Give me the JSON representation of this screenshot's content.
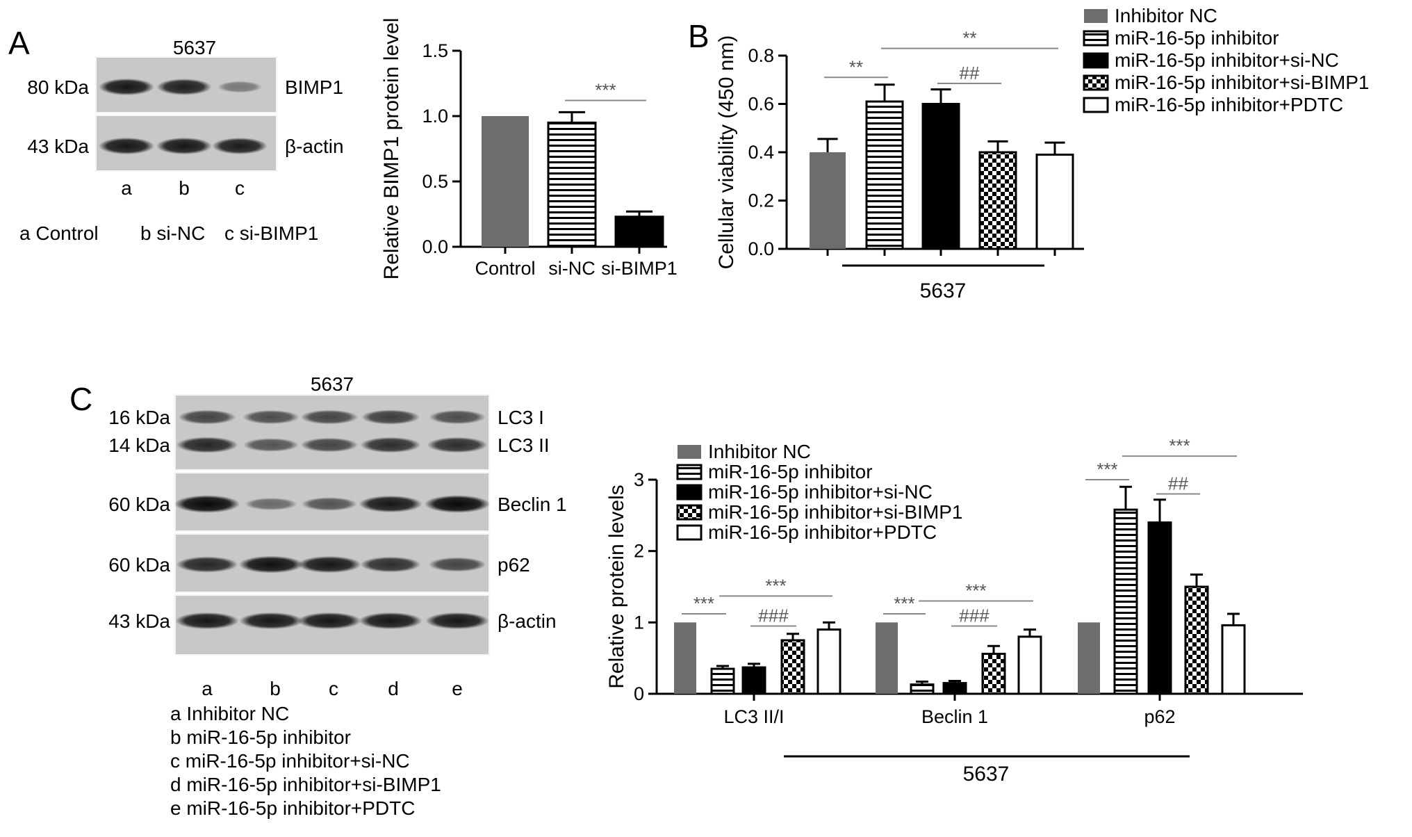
{
  "panels": {
    "A": {
      "letter": "A",
      "blot": {
        "cell_line": "5637",
        "rows": [
          {
            "kda": "80 kDa",
            "protein": "BIMP1",
            "intensities": [
              0.85,
              0.8,
              0.2
            ]
          },
          {
            "kda": "43 kDa",
            "protein": "β-actin",
            "intensities": [
              0.85,
              0.85,
              0.82
            ]
          }
        ],
        "lanes": [
          "a",
          "b",
          "c"
        ],
        "key": [
          "a Control",
          "b si-NC",
          "c si-BIMP1"
        ]
      }
    },
    "B": {
      "letter": "B",
      "group_label": "5637"
    },
    "C": {
      "letter": "C",
      "blot": {
        "cell_line": "5637",
        "rows": [
          {
            "kda": "16 kDa",
            "protein": "LC3 I",
            "intensities": [
              0.55,
              0.5,
              0.55,
              0.6,
              0.5
            ]
          },
          {
            "kda": "14 kDa",
            "protein": "LC3 II",
            "intensities": [
              0.75,
              0.45,
              0.55,
              0.7,
              0.7
            ]
          },
          {
            "kda": "60 kDa",
            "protein": "Beclin 1",
            "intensities": [
              0.95,
              0.3,
              0.45,
              0.85,
              0.95
            ]
          },
          {
            "kda": "60 kDa",
            "protein": "p62",
            "intensities": [
              0.75,
              0.9,
              0.85,
              0.7,
              0.55
            ]
          },
          {
            "kda": "43 kDa",
            "protein": "β-actin",
            "intensities": [
              0.85,
              0.85,
              0.85,
              0.85,
              0.85
            ]
          }
        ],
        "lanes": [
          "a",
          "b",
          "c",
          "d",
          "e"
        ],
        "key": [
          "a Inhibitor NC",
          "b miR-16-5p inhibitor",
          "c miR-16-5p inhibitor+si-NC",
          "d miR-16-5p inhibitor+si-BIMP1",
          "e miR-16-5p inhibitor+PDTC"
        ]
      },
      "group_label": "5637"
    }
  },
  "colors": {
    "gray": "#6d6d6d",
    "black": "#000000",
    "white": "#ffffff",
    "axis": "#000000",
    "sig_line": "#888888"
  },
  "chart_data": [
    {
      "id": "A-right",
      "type": "bar",
      "categories": [
        "Control",
        "si-NC",
        "si-BIMP1"
      ],
      "values": [
        1.0,
        0.95,
        0.23
      ],
      "errors": [
        0,
        0.08,
        0.04
      ],
      "fills": [
        "gray",
        "hstripe",
        "black"
      ],
      "ylabel": "Relative BIMP1 protein level",
      "ylim": [
        0,
        1.5
      ],
      "yticks": [
        "0.0",
        "0.5",
        "1.0",
        "1.5"
      ],
      "annotations": [
        {
          "from": 1,
          "to": 2,
          "text": "***",
          "y": 1.12
        }
      ]
    },
    {
      "id": "B",
      "type": "bar",
      "categories": [
        "Inhibitor NC",
        "miR-16-5p inhibitor",
        "miR-16-5p inhibitor+si-NC",
        "miR-16-5p inhibitor+si-BIMP1",
        "miR-16-5p inhibitor+PDTC"
      ],
      "values": [
        0.4,
        0.61,
        0.6,
        0.4,
        0.39
      ],
      "errors": [
        0.055,
        0.07,
        0.06,
        0.045,
        0.05
      ],
      "fills": [
        "gray",
        "hstripe",
        "black",
        "checker",
        "white"
      ],
      "ylabel": "Cellular viability (450 nm)",
      "ylim": [
        0,
        0.8
      ],
      "yticks": [
        "0.0",
        "0.2",
        "0.4",
        "0.6",
        "0.8"
      ],
      "legend": {
        "placement": "top-right",
        "entries": [
          "Inhibitor NC",
          "miR-16-5p inhibitor",
          "miR-16-5p inhibitor+si-NC",
          "miR-16-5p inhibitor+si-BIMP1",
          "miR-16-5p inhibitor+PDTC"
        ]
      },
      "annotations": [
        {
          "from": 0,
          "to": 1,
          "text": "**",
          "y": 0.71
        },
        {
          "from": 1,
          "to": 4,
          "text": "**",
          "y": 0.83
        },
        {
          "from": 2,
          "to": 3,
          "text": "##",
          "y": 0.685
        }
      ]
    },
    {
      "id": "C-right",
      "type": "bar",
      "categories": [
        "LC3 II/I",
        "Beclin 1",
        "p62"
      ],
      "series": [
        {
          "name": "Inhibitor NC",
          "values": [
            1.0,
            1.0,
            1.0
          ],
          "errors": [
            0,
            0,
            0
          ],
          "fill": "gray"
        },
        {
          "name": "miR-16-5p inhibitor",
          "values": [
            0.35,
            0.13,
            2.58
          ],
          "errors": [
            0.04,
            0.04,
            0.32
          ],
          "fill": "hstripe"
        },
        {
          "name": "miR-16-5p inhibitor+si-NC",
          "values": [
            0.37,
            0.15,
            2.4
          ],
          "errors": [
            0.05,
            0.03,
            0.32
          ],
          "fill": "black"
        },
        {
          "name": "miR-16-5p inhibitor+si-BIMP1",
          "values": [
            0.75,
            0.56,
            1.5
          ],
          "errors": [
            0.09,
            0.11,
            0.17
          ],
          "fill": "checker"
        },
        {
          "name": "miR-16-5p inhibitor+PDTC",
          "values": [
            0.9,
            0.8,
            0.96
          ],
          "errors": [
            0.1,
            0.1,
            0.16
          ],
          "fill": "white"
        }
      ],
      "ylabel": "Relative protein levels",
      "ylim": [
        0,
        3
      ],
      "yticks": [
        "0",
        "1",
        "2",
        "3"
      ],
      "legend": {
        "placement": "top-left",
        "entries": [
          "Inhibitor NC",
          "miR-16-5p inhibitor",
          "miR-16-5p inhibitor+si-NC",
          "miR-16-5p inhibitor+si-BIMP1",
          "miR-16-5p inhibitor+PDTC"
        ]
      },
      "annotations": [
        {
          "group": 0,
          "from": 0,
          "to": 1,
          "text": "***",
          "y": 1.12
        },
        {
          "group": 0,
          "from": 1,
          "to": 4,
          "text": "***",
          "y": 1.37
        },
        {
          "group": 0,
          "from": 2,
          "to": 3,
          "text": "###",
          "y": 0.95
        },
        {
          "group": 1,
          "from": 0,
          "to": 1,
          "text": "***",
          "y": 1.12
        },
        {
          "group": 1,
          "from": 1,
          "to": 4,
          "text": "***",
          "y": 1.3
        },
        {
          "group": 1,
          "from": 2,
          "to": 3,
          "text": "###",
          "y": 0.95
        },
        {
          "group": 2,
          "from": 0,
          "to": 1,
          "text": "***",
          "y": 3.0
        },
        {
          "group": 2,
          "from": 1,
          "to": 4,
          "text": "***",
          "y": 3.33
        },
        {
          "group": 2,
          "from": 2,
          "to": 3,
          "text": "##",
          "y": 2.8
        }
      ]
    }
  ]
}
